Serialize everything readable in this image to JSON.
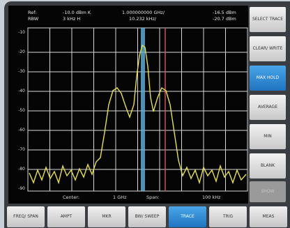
{
  "header": {
    "ref": "Ref:",
    "rbw_label": "RBW",
    "ref_value": "-10.0 dBm K",
    "rbw_value": "3 kHz H",
    "marker_freq": "1.000000000 GHz/",
    "marker_delta": "10.232 kHz/",
    "marker_level": "-16.5 dBm",
    "delta_level": "-20.7 dBm"
  },
  "y_labels": [
    "-10",
    "-20",
    "-30",
    "-40",
    "-50",
    "-60",
    "-70",
    "-80",
    "-90"
  ],
  "footer": {
    "center_label": "Center:",
    "center_value": "1 GHz",
    "span_label": "Span:",
    "span_value": "100 kHz"
  },
  "softkeys": [
    "SELECT TRACE",
    "CLEAR/ WRITE",
    "MAX HOLD",
    "AVERAGE",
    "MIN",
    "BLANK",
    "SHOW"
  ],
  "tabs": [
    "FREQ/ SPAN",
    "AMPT",
    "MKR",
    "BW/ SWEEP",
    "TRACE",
    "TRIG",
    "MEAS"
  ]
}
